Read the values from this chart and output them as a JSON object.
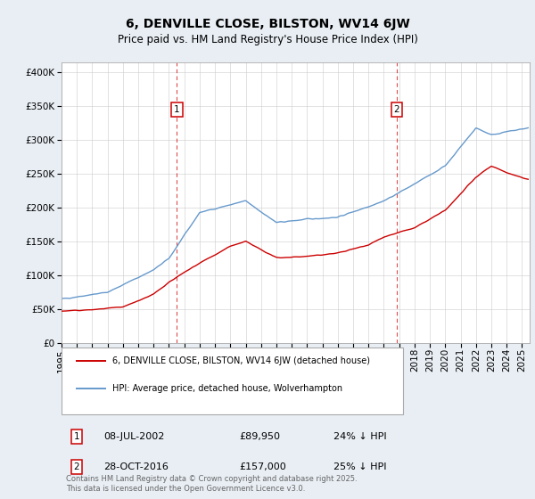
{
  "title": "6, DENVILLE CLOSE, BILSTON, WV14 6JW",
  "subtitle": "Price paid vs. HM Land Registry's House Price Index (HPI)",
  "ytick_values": [
    0,
    50000,
    100000,
    150000,
    200000,
    250000,
    300000,
    350000,
    400000
  ],
  "ylim": [
    0,
    415000
  ],
  "xlim_start": 1995.0,
  "xlim_end": 2025.5,
  "marker1_x": 2002.52,
  "marker1_y": 89950,
  "marker1_label": "1",
  "marker1_date": "08-JUL-2002",
  "marker1_price": "£89,950",
  "marker1_pct": "24% ↓ HPI",
  "marker2_x": 2016.83,
  "marker2_y": 157000,
  "marker2_label": "2",
  "marker2_date": "28-OCT-2016",
  "marker2_price": "£157,000",
  "marker2_pct": "25% ↓ HPI",
  "red_line_color": "#cc0000",
  "blue_line_color": "#6699cc",
  "dashed_line_color": "#cc0000",
  "background_color": "#e8eef4",
  "plot_bg_color": "#ffffff",
  "grid_color": "#cccccc",
  "legend_line1": "6, DENVILLE CLOSE, BILSTON, WV14 6JW (detached house)",
  "legend_line2": "HPI: Average price, detached house, Wolverhampton",
  "footer": "Contains HM Land Registry data © Crown copyright and database right 2025.\nThis data is licensed under the Open Government Licence v3.0.",
  "title_fontsize": 10,
  "subtitle_fontsize": 8.5,
  "axis_fontsize": 7.5,
  "legend_fontsize": 7.5
}
